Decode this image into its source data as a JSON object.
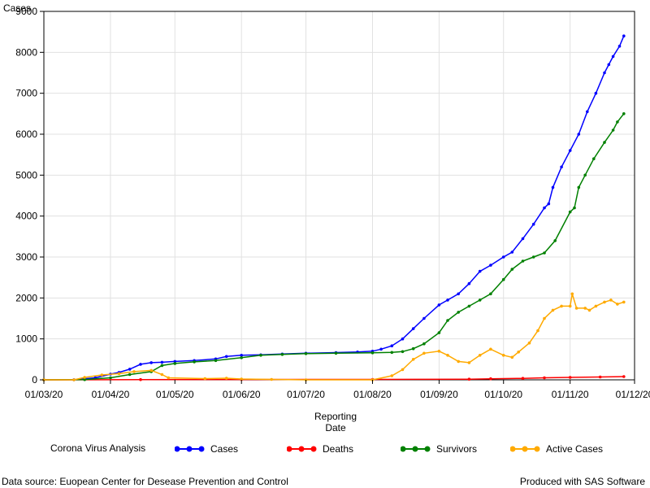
{
  "chart_data": {
    "type": "line",
    "ylabel": "Cases",
    "xlabel_line1": "Reporting",
    "xlabel_line2": "Date",
    "xlim": [
      "2020-03-01",
      "2020-12-01"
    ],
    "ylim": [
      0,
      9000
    ],
    "y_ticks": [
      0,
      1000,
      2000,
      3000,
      4000,
      5000,
      6000,
      7000,
      8000,
      9000
    ],
    "x_ticks": [
      {
        "date": "2020-03-01",
        "label": "01/03/20"
      },
      {
        "date": "2020-04-01",
        "label": "01/04/20"
      },
      {
        "date": "2020-05-01",
        "label": "01/05/20"
      },
      {
        "date": "2020-06-01",
        "label": "01/06/20"
      },
      {
        "date": "2020-07-01",
        "label": "01/07/20"
      },
      {
        "date": "2020-08-01",
        "label": "01/08/20"
      },
      {
        "date": "2020-09-01",
        "label": "01/09/20"
      },
      {
        "date": "2020-10-01",
        "label": "01/10/20"
      },
      {
        "date": "2020-11-01",
        "label": "01/11/20"
      },
      {
        "date": "2020-12-01",
        "label": "01/12/20"
      }
    ],
    "grid": true,
    "legend_position": "bottom",
    "series": [
      {
        "name": "Cases",
        "color": "#0000ff",
        "points": [
          [
            "2020-03-01",
            0
          ],
          [
            "2020-03-15",
            2
          ],
          [
            "2020-03-25",
            50
          ],
          [
            "2020-04-01",
            140
          ],
          [
            "2020-04-05",
            180
          ],
          [
            "2020-04-10",
            260
          ],
          [
            "2020-04-15",
            380
          ],
          [
            "2020-04-20",
            420
          ],
          [
            "2020-04-25",
            430
          ],
          [
            "2020-05-01",
            450
          ],
          [
            "2020-05-10",
            470
          ],
          [
            "2020-05-20",
            510
          ],
          [
            "2020-05-25",
            570
          ],
          [
            "2020-06-01",
            600
          ],
          [
            "2020-06-10",
            610
          ],
          [
            "2020-06-20",
            630
          ],
          [
            "2020-07-01",
            650
          ],
          [
            "2020-07-15",
            665
          ],
          [
            "2020-07-25",
            680
          ],
          [
            "2020-08-01",
            700
          ],
          [
            "2020-08-05",
            750
          ],
          [
            "2020-08-10",
            830
          ],
          [
            "2020-08-15",
            1000
          ],
          [
            "2020-08-20",
            1250
          ],
          [
            "2020-08-25",
            1500
          ],
          [
            "2020-09-01",
            1830
          ],
          [
            "2020-09-05",
            1950
          ],
          [
            "2020-09-10",
            2100
          ],
          [
            "2020-09-15",
            2350
          ],
          [
            "2020-09-20",
            2650
          ],
          [
            "2020-09-25",
            2800
          ],
          [
            "2020-10-01",
            3000
          ],
          [
            "2020-10-05",
            3120
          ],
          [
            "2020-10-10",
            3450
          ],
          [
            "2020-10-15",
            3800
          ],
          [
            "2020-10-20",
            4200
          ],
          [
            "2020-10-22",
            4300
          ],
          [
            "2020-10-24",
            4700
          ],
          [
            "2020-10-28",
            5200
          ],
          [
            "2020-11-01",
            5600
          ],
          [
            "2020-11-05",
            6000
          ],
          [
            "2020-11-09",
            6550
          ],
          [
            "2020-11-13",
            7000
          ],
          [
            "2020-11-17",
            7500
          ],
          [
            "2020-11-19",
            7700
          ],
          [
            "2020-11-21",
            7900
          ],
          [
            "2020-11-24",
            8150
          ],
          [
            "2020-11-26",
            8400
          ]
        ]
      },
      {
        "name": "Deaths",
        "color": "#ff0000",
        "points": [
          [
            "2020-03-01",
            0
          ],
          [
            "2020-04-15",
            5
          ],
          [
            "2020-06-01",
            8
          ],
          [
            "2020-08-01",
            10
          ],
          [
            "2020-09-15",
            15
          ],
          [
            "2020-09-25",
            25
          ],
          [
            "2020-10-10",
            35
          ],
          [
            "2020-10-20",
            50
          ],
          [
            "2020-11-01",
            60
          ],
          [
            "2020-11-15",
            70
          ],
          [
            "2020-11-26",
            80
          ]
        ]
      },
      {
        "name": "Survivors",
        "color": "#008000",
        "points": [
          [
            "2020-03-01",
            0
          ],
          [
            "2020-03-20",
            5
          ],
          [
            "2020-04-01",
            50
          ],
          [
            "2020-04-10",
            130
          ],
          [
            "2020-04-20",
            200
          ],
          [
            "2020-04-25",
            350
          ],
          [
            "2020-05-01",
            400
          ],
          [
            "2020-05-10",
            440
          ],
          [
            "2020-05-20",
            470
          ],
          [
            "2020-06-01",
            540
          ],
          [
            "2020-06-10",
            600
          ],
          [
            "2020-06-20",
            620
          ],
          [
            "2020-07-01",
            640
          ],
          [
            "2020-07-15",
            650
          ],
          [
            "2020-08-01",
            660
          ],
          [
            "2020-08-10",
            670
          ],
          [
            "2020-08-15",
            690
          ],
          [
            "2020-08-20",
            760
          ],
          [
            "2020-08-25",
            880
          ],
          [
            "2020-09-01",
            1150
          ],
          [
            "2020-09-05",
            1450
          ],
          [
            "2020-09-10",
            1650
          ],
          [
            "2020-09-15",
            1800
          ],
          [
            "2020-09-20",
            1950
          ],
          [
            "2020-09-25",
            2100
          ],
          [
            "2020-10-01",
            2450
          ],
          [
            "2020-10-05",
            2700
          ],
          [
            "2020-10-10",
            2900
          ],
          [
            "2020-10-15",
            3000
          ],
          [
            "2020-10-20",
            3100
          ],
          [
            "2020-10-25",
            3400
          ],
          [
            "2020-11-01",
            4100
          ],
          [
            "2020-11-03",
            4200
          ],
          [
            "2020-11-05",
            4700
          ],
          [
            "2020-11-08",
            5000
          ],
          [
            "2020-11-12",
            5400
          ],
          [
            "2020-11-17",
            5800
          ],
          [
            "2020-11-21",
            6100
          ],
          [
            "2020-11-23",
            6300
          ],
          [
            "2020-11-26",
            6500
          ]
        ]
      },
      {
        "name": "Active Cases",
        "color": "#ffaa00",
        "points": [
          [
            "2020-03-01",
            0
          ],
          [
            "2020-03-15",
            0
          ],
          [
            "2020-03-20",
            60
          ],
          [
            "2020-03-28",
            120
          ],
          [
            "2020-04-05",
            150
          ],
          [
            "2020-04-12",
            200
          ],
          [
            "2020-04-20",
            230
          ],
          [
            "2020-04-25",
            130
          ],
          [
            "2020-04-28",
            50
          ],
          [
            "2020-05-15",
            30
          ],
          [
            "2020-05-25",
            40
          ],
          [
            "2020-06-01",
            20
          ],
          [
            "2020-06-15",
            10
          ],
          [
            "2020-07-01",
            0
          ],
          [
            "2020-08-01",
            0
          ],
          [
            "2020-08-10",
            100
          ],
          [
            "2020-08-15",
            250
          ],
          [
            "2020-08-20",
            500
          ],
          [
            "2020-08-25",
            650
          ],
          [
            "2020-09-01",
            700
          ],
          [
            "2020-09-05",
            600
          ],
          [
            "2020-09-10",
            450
          ],
          [
            "2020-09-15",
            420
          ],
          [
            "2020-09-20",
            600
          ],
          [
            "2020-09-25",
            750
          ],
          [
            "2020-10-01",
            600
          ],
          [
            "2020-10-05",
            550
          ],
          [
            "2020-10-08",
            680
          ],
          [
            "2020-10-13",
            900
          ],
          [
            "2020-10-17",
            1200
          ],
          [
            "2020-10-20",
            1500
          ],
          [
            "2020-10-24",
            1700
          ],
          [
            "2020-10-28",
            1800
          ],
          [
            "2020-11-01",
            1800
          ],
          [
            "2020-11-02",
            2100
          ],
          [
            "2020-11-04",
            1750
          ],
          [
            "2020-11-08",
            1750
          ],
          [
            "2020-11-10",
            1700
          ],
          [
            "2020-11-13",
            1800
          ],
          [
            "2020-11-17",
            1900
          ],
          [
            "2020-11-20",
            1950
          ],
          [
            "2020-11-23",
            1850
          ],
          [
            "2020-11-26",
            1900
          ]
        ]
      }
    ]
  },
  "legend": {
    "title": "Corona Virus Analysis",
    "items": [
      {
        "label": "Cases",
        "color": "#0000ff"
      },
      {
        "label": "Deaths",
        "color": "#ff0000"
      },
      {
        "label": "Survivors",
        "color": "#008000"
      },
      {
        "label": "Active Cases",
        "color": "#ffaa00"
      }
    ]
  },
  "footnotes": {
    "left": "Data source: Euopean Center for Desease Prevention and Control",
    "right": "Produced with SAS Software"
  }
}
